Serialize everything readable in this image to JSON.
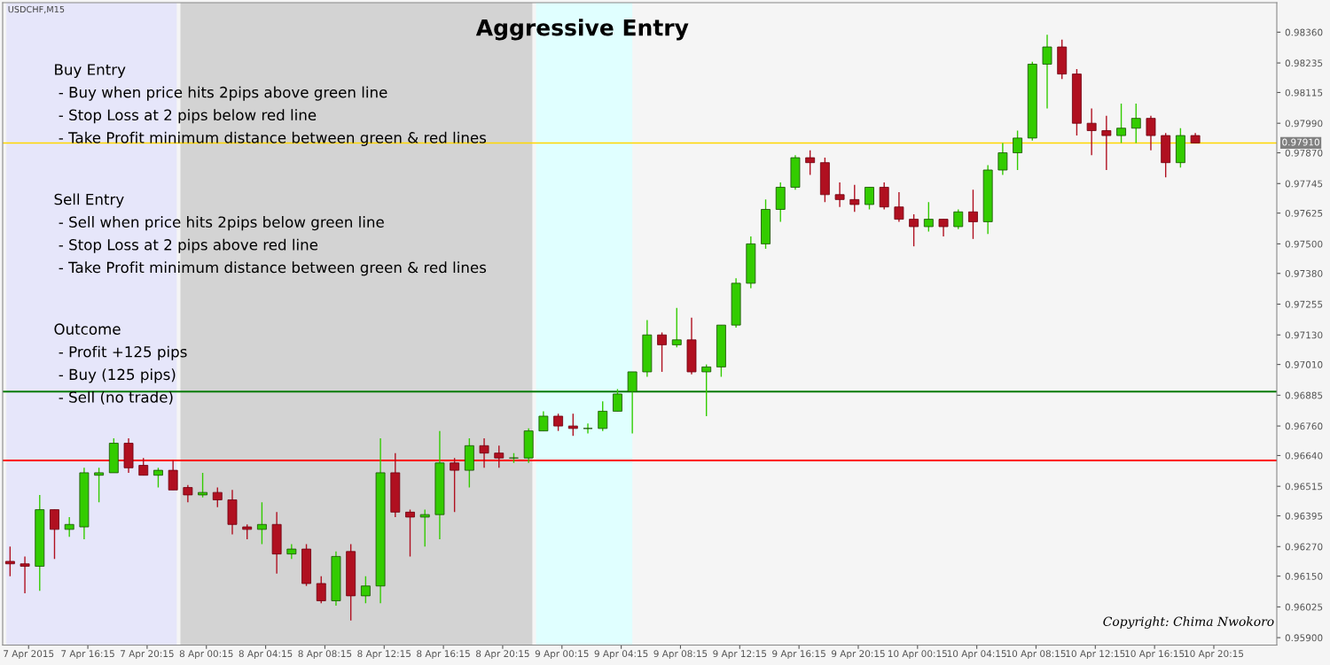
{
  "chart_data": {
    "type": "candlestick",
    "title": "Aggressive Entry",
    "annotations": [
      "Buy Entry\n - Buy when price hits 2pips above green line\n - Stop Loss at 2 pips below red line\n - Take Profit minimum distance between green & red lines",
      "Sell Entry\n - Sell when price hits 2pips below green line\n - Stop Loss at 2 pips above red line\n - Take Profit minimum distance between green & red lines",
      "Outcome\n - Profit +125 pips\n - Buy (125 pips)\n - Sell (no trade)",
      "USDCHF,M15",
      "Copyright: Chima Nwokoro"
    ],
    "x": [
      "2015-04-07T11:00",
      "2015-04-07T12:00",
      "2015-04-07T13:00",
      "2015-04-07T14:00",
      "2015-04-07T15:00",
      "2015-04-07T16:00",
      "2015-04-07T17:00",
      "2015-04-07T18:00",
      "2015-04-07T19:00",
      "2015-04-07T20:00",
      "2015-04-07T21:00",
      "2015-04-07T22:00",
      "2015-04-07T23:00",
      "2015-04-08T00:00",
      "2015-04-08T01:00",
      "2015-04-08T02:00",
      "2015-04-08T03:00",
      "2015-04-08T04:00",
      "2015-04-08T05:00",
      "2015-04-08T06:00",
      "2015-04-08T07:00",
      "2015-04-08T08:00",
      "2015-04-08T09:00",
      "2015-04-08T10:00",
      "2015-04-08T11:00",
      "2015-04-08T12:00",
      "2015-04-08T13:00",
      "2015-04-08T14:00",
      "2015-04-08T15:00",
      "2015-04-08T16:00",
      "2015-04-08T17:00",
      "2015-04-08T18:00",
      "2015-04-08T19:00",
      "2015-04-08T20:00",
      "2015-04-08T21:00",
      "2015-04-08T22:00",
      "2015-04-08T23:00",
      "2015-04-09T00:00",
      "2015-04-09T01:00",
      "2015-04-09T02:00",
      "2015-04-09T03:00",
      "2015-04-09T04:00",
      "2015-04-09T05:00",
      "2015-04-09T06:00",
      "2015-04-09T07:00",
      "2015-04-09T08:00",
      "2015-04-09T09:00",
      "2015-04-09T10:00",
      "2015-04-09T11:00",
      "2015-04-09T12:00",
      "2015-04-09T13:00",
      "2015-04-09T14:00",
      "2015-04-09T15:00",
      "2015-04-09T16:00",
      "2015-04-09T17:00",
      "2015-04-09T18:00",
      "2015-04-09T19:00",
      "2015-04-09T20:00",
      "2015-04-09T21:00",
      "2015-04-09T22:00",
      "2015-04-09T23:00",
      "2015-04-10T00:00",
      "2015-04-10T01:00",
      "2015-04-10T02:00",
      "2015-04-10T03:00",
      "2015-04-10T04:00",
      "2015-04-10T05:00",
      "2015-04-10T06:00",
      "2015-04-10T07:00",
      "2015-04-10T08:00",
      "2015-04-10T09:00",
      "2015-04-10T10:00",
      "2015-04-10T11:00",
      "2015-04-10T12:00",
      "2015-04-10T13:00",
      "2015-04-10T14:00",
      "2015-04-10T15:00",
      "2015-04-10T16:00",
      "2015-04-10T17:00",
      "2015-04-10T18:00",
      "2015-04-10T19:00"
    ],
    "ohlc": [
      [
        0.9621,
        0.9627,
        0.9615,
        0.962
      ],
      [
        0.962,
        0.9623,
        0.9608,
        0.9619
      ],
      [
        0.9619,
        0.9648,
        0.9609,
        0.9642
      ],
      [
        0.9642,
        0.9642,
        0.9622,
        0.9634
      ],
      [
        0.9634,
        0.9639,
        0.9631,
        0.9636
      ],
      [
        0.9635,
        0.9659,
        0.963,
        0.9657
      ],
      [
        0.9656,
        0.9659,
        0.9645,
        0.9657
      ],
      [
        0.9657,
        0.9671,
        0.9657,
        0.9669
      ],
      [
        0.9669,
        0.9671,
        0.9657,
        0.9659
      ],
      [
        0.966,
        0.9663,
        0.9656,
        0.9656
      ],
      [
        0.9656,
        0.9659,
        0.9651,
        0.9658
      ],
      [
        0.9658,
        0.9662,
        0.965,
        0.965
      ],
      [
        0.9651,
        0.9652,
        0.9645,
        0.9648
      ],
      [
        0.9648,
        0.9657,
        0.9647,
        0.9649
      ],
      [
        0.9649,
        0.9651,
        0.9643,
        0.9646
      ],
      [
        0.9646,
        0.965,
        0.9632,
        0.9636
      ],
      [
        0.9635,
        0.9636,
        0.963,
        0.9634
      ],
      [
        0.9634,
        0.9645,
        0.9628,
        0.9636
      ],
      [
        0.9636,
        0.9641,
        0.9616,
        0.9624
      ],
      [
        0.9624,
        0.9628,
        0.9622,
        0.9626
      ],
      [
        0.9626,
        0.9628,
        0.9611,
        0.9612
      ],
      [
        0.9612,
        0.9615,
        0.9604,
        0.9605
      ],
      [
        0.9605,
        0.9625,
        0.9603,
        0.9623
      ],
      [
        0.9625,
        0.9628,
        0.9597,
        0.9607
      ],
      [
        0.9607,
        0.9615,
        0.9604,
        0.9611
      ],
      [
        0.9611,
        0.9671,
        0.9604,
        0.9657
      ],
      [
        0.9657,
        0.9665,
        0.9639,
        0.9641
      ],
      [
        0.9641,
        0.9642,
        0.9623,
        0.9639
      ],
      [
        0.9639,
        0.9642,
        0.9627,
        0.964
      ],
      [
        0.964,
        0.9674,
        0.963,
        0.9661
      ],
      [
        0.9661,
        0.9663,
        0.9641,
        0.9658
      ],
      [
        0.9658,
        0.9671,
        0.9651,
        0.9668
      ],
      [
        0.9668,
        0.9671,
        0.9659,
        0.9665
      ],
      [
        0.9665,
        0.9668,
        0.9659,
        0.9663
      ],
      [
        0.9663,
        0.9665,
        0.9661,
        0.9663
      ],
      [
        0.9663,
        0.9675,
        0.9661,
        0.9674
      ],
      [
        0.9674,
        0.9682,
        0.9674,
        0.968
      ],
      [
        0.968,
        0.9681,
        0.9674,
        0.9676
      ],
      [
        0.9676,
        0.9681,
        0.9672,
        0.9675
      ],
      [
        0.9675,
        0.9677,
        0.9673,
        0.9675
      ],
      [
        0.9675,
        0.9686,
        0.9674,
        0.9682
      ],
      [
        0.9682,
        0.9691,
        0.9682,
        0.9689
      ],
      [
        0.969,
        0.9698,
        0.9673,
        0.9698
      ],
      [
        0.9698,
        0.9719,
        0.9696,
        0.9713
      ],
      [
        0.9713,
        0.9714,
        0.9698,
        0.9709
      ],
      [
        0.9709,
        0.9724,
        0.9708,
        0.9711
      ],
      [
        0.9711,
        0.972,
        0.9697,
        0.9698
      ],
      [
        0.9698,
        0.9701,
        0.968,
        0.97
      ],
      [
        0.97,
        0.9717,
        0.9696,
        0.9717
      ],
      [
        0.9717,
        0.9736,
        0.9716,
        0.9734
      ],
      [
        0.9734,
        0.9753,
        0.9732,
        0.975
      ],
      [
        0.975,
        0.9768,
        0.9748,
        0.9764
      ],
      [
        0.9764,
        0.9775,
        0.9759,
        0.9773
      ],
      [
        0.9773,
        0.9786,
        0.9772,
        0.9785
      ],
      [
        0.9785,
        0.9788,
        0.9778,
        0.9783
      ],
      [
        0.9783,
        0.9785,
        0.9767,
        0.977
      ],
      [
        0.977,
        0.9775,
        0.9765,
        0.9768
      ],
      [
        0.9768,
        0.9774,
        0.9763,
        0.9766
      ],
      [
        0.9766,
        0.9773,
        0.9764,
        0.9773
      ],
      [
        0.9773,
        0.9775,
        0.9764,
        0.9765
      ],
      [
        0.9765,
        0.9771,
        0.9759,
        0.976
      ],
      [
        0.976,
        0.9762,
        0.9749,
        0.9757
      ],
      [
        0.9757,
        0.9767,
        0.9755,
        0.976
      ],
      [
        0.976,
        0.976,
        0.9753,
        0.9757
      ],
      [
        0.9757,
        0.9764,
        0.9756,
        0.9763
      ],
      [
        0.9763,
        0.9772,
        0.9752,
        0.9759
      ],
      [
        0.9759,
        0.9782,
        0.9754,
        0.978
      ],
      [
        0.978,
        0.9791,
        0.9778,
        0.9787
      ],
      [
        0.9787,
        0.9796,
        0.978,
        0.9793
      ],
      [
        0.9793,
        0.9824,
        0.9792,
        0.9823
      ],
      [
        0.9823,
        0.9835,
        0.9805,
        0.983
      ],
      [
        0.983,
        0.9833,
        0.9817,
        0.9819
      ],
      [
        0.9819,
        0.9821,
        0.9794,
        0.9799
      ],
      [
        0.9799,
        0.9805,
        0.9786,
        0.9796
      ],
      [
        0.9796,
        0.9802,
        0.978,
        0.9794
      ],
      [
        0.9794,
        0.9807,
        0.9791,
        0.9797
      ],
      [
        0.9797,
        0.9807,
        0.9791,
        0.9801
      ],
      [
        0.9801,
        0.9802,
        0.9788,
        0.9794
      ],
      [
        0.9794,
        0.9795,
        0.9777,
        0.9783
      ],
      [
        0.9783,
        0.9797,
        0.9781,
        0.9794
      ],
      [
        0.9794,
        0.9795,
        0.9791,
        0.9791
      ]
    ],
    "xlim": [
      "2015-04-07T10:30",
      "2015-04-11T00:30"
    ],
    "xticks": [
      {
        "value": "2015-04-07T12:15",
        "label": "7 Apr 2015"
      },
      {
        "value": "2015-04-07T16:15",
        "label": "7 Apr 16:15"
      },
      {
        "value": "2015-04-07T20:15",
        "label": "7 Apr 20:15"
      },
      {
        "value": "2015-04-08T00:15",
        "label": "8 Apr 00:15"
      },
      {
        "value": "2015-04-08T04:15",
        "label": "8 Apr 04:15"
      },
      {
        "value": "2015-04-08T08:15",
        "label": "8 Apr 08:15"
      },
      {
        "value": "2015-04-08T12:15",
        "label": "8 Apr 12:15"
      },
      {
        "value": "2015-04-08T16:15",
        "label": "8 Apr 16:15"
      },
      {
        "value": "2015-04-08T20:15",
        "label": "8 Apr 20:15"
      },
      {
        "value": "2015-04-09T00:15",
        "label": "9 Apr 00:15"
      },
      {
        "value": "2015-04-09T04:15",
        "label": "9 Apr 04:15"
      },
      {
        "value": "2015-04-09T08:15",
        "label": "9 Apr 08:15"
      },
      {
        "value": "2015-04-09T12:15",
        "label": "9 Apr 12:15"
      },
      {
        "value": "2015-04-09T16:15",
        "label": "9 Apr 16:15"
      },
      {
        "value": "2015-04-09T20:15",
        "label": "9 Apr 20:15"
      },
      {
        "value": "2015-04-10T00:15",
        "label": "10 Apr 00:15"
      },
      {
        "value": "2015-04-10T04:15",
        "label": "10 Apr 04:15"
      },
      {
        "value": "2015-04-10T08:15",
        "label": "10 Apr 08:15"
      },
      {
        "value": "2015-04-10T12:15",
        "label": "10 Apr 12:15"
      },
      {
        "value": "2015-04-10T16:15",
        "label": "10 Apr 16:15"
      },
      {
        "value": "2015-04-10T20:15",
        "label": "10 Apr 20:15"
      }
    ],
    "ylim": [
      0.9587,
      0.9848
    ],
    "yticks": [
      {
        "value": 0.9836,
        "label": "0.98360"
      },
      {
        "value": 0.98235,
        "label": "0.98235"
      },
      {
        "value": 0.98115,
        "label": "0.98115"
      },
      {
        "value": 0.9799,
        "label": "0.97990"
      },
      {
        "value": 0.9787,
        "label": "0.97870"
      },
      {
        "value": 0.97745,
        "label": "0.97745"
      },
      {
        "value": 0.97625,
        "label": "0.97625"
      },
      {
        "value": 0.975,
        "label": "0.97500"
      },
      {
        "value": 0.9738,
        "label": "0.97380"
      },
      {
        "value": 0.97255,
        "label": "0.97255"
      },
      {
        "value": 0.9713,
        "label": "0.97130"
      },
      {
        "value": 0.9701,
        "label": "0.97010"
      },
      {
        "value": 0.96885,
        "label": "0.96885"
      },
      {
        "value": 0.9676,
        "label": "0.96760"
      },
      {
        "value": 0.9664,
        "label": "0.96640"
      },
      {
        "value": 0.96515,
        "label": "0.96515"
      },
      {
        "value": 0.96395,
        "label": "0.96395"
      },
      {
        "value": 0.9627,
        "label": "0.96270"
      },
      {
        "value": 0.9615,
        "label": "0.96150"
      },
      {
        "value": 0.96025,
        "label": "0.96025"
      },
      {
        "value": 0.959,
        "label": "0.95900"
      }
    ],
    "ref_lines": [
      {
        "axis": "y",
        "value": 0.9791,
        "label": "0.97910",
        "color": "#ffd700"
      },
      {
        "axis": "y",
        "value": 0.969,
        "color": "#007a00"
      },
      {
        "axis": "y",
        "value": 0.9662,
        "color": "#ff0000"
      }
    ],
    "bands": [
      {
        "axis": "x",
        "from": "2015-04-07T10:45",
        "to": "2015-04-07T22:15",
        "color": "#e6e6fa"
      },
      {
        "axis": "x",
        "from": "2015-04-07T22:30",
        "to": "2015-04-08T22:15",
        "color": "#d3d3d3"
      },
      {
        "axis": "x",
        "from": "2015-04-08T22:30",
        "to": "2015-04-09T05:00",
        "color": "#e0ffff"
      }
    ],
    "grid": false,
    "legend": false
  }
}
